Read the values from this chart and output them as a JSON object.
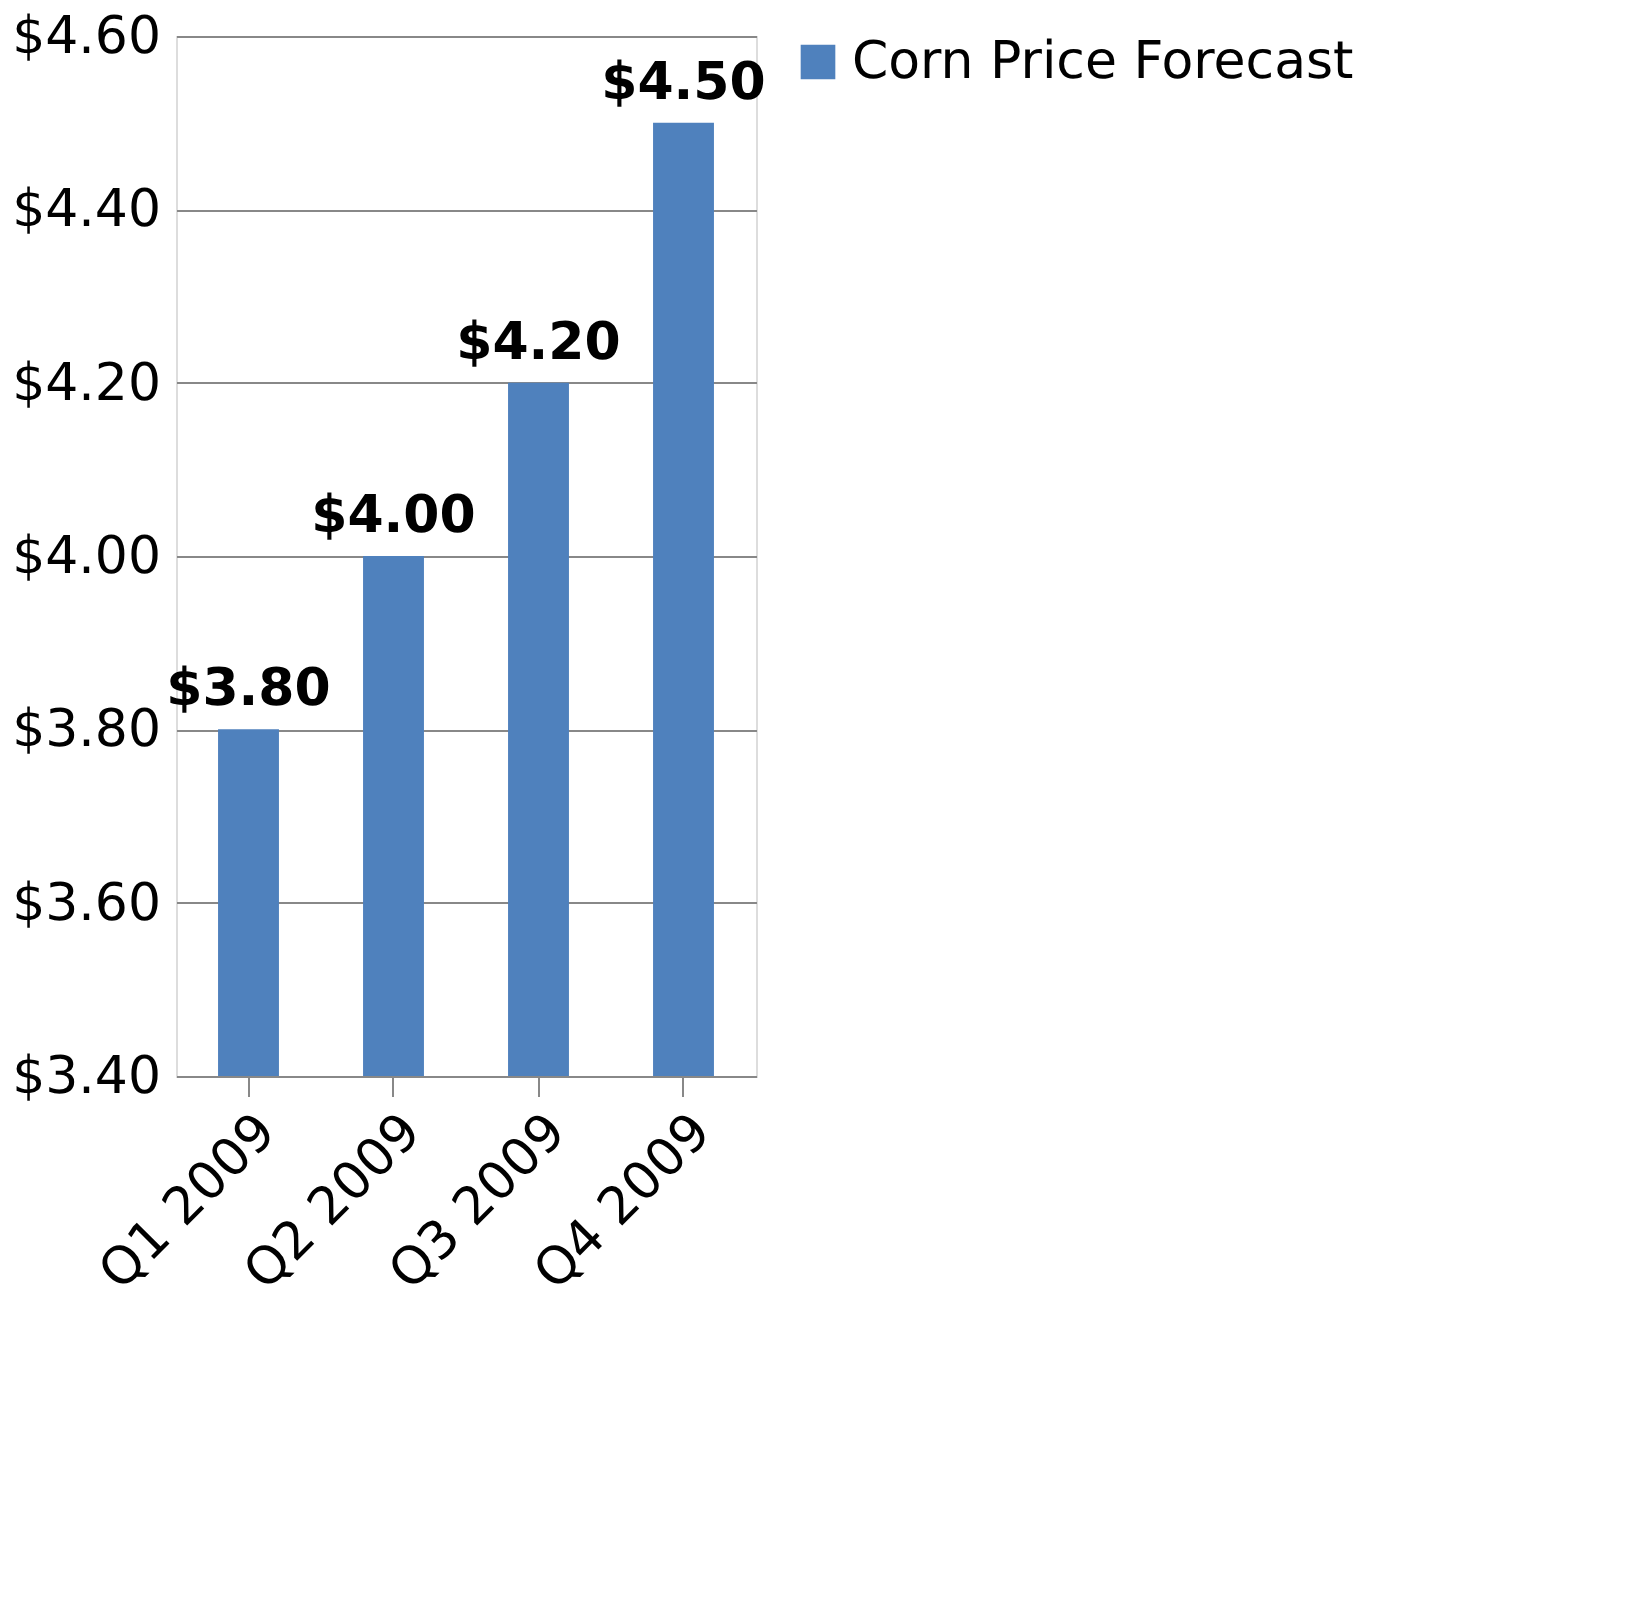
{
  "chart_data": {
    "type": "bar",
    "categories": [
      "Q1 2009",
      "Q2 2009",
      "Q3 2009",
      "Q4 2009"
    ],
    "series": [
      {
        "name": "Corn Price Forecast",
        "color": "#4f81bd",
        "values": [
          3.8,
          4.0,
          4.2,
          4.5
        ]
      }
    ],
    "value_labels": [
      "$3.80",
      "$4.00",
      "$4.20",
      "$4.50"
    ],
    "ylim": [
      3.4,
      4.6
    ],
    "yticks": [
      {
        "value": 3.4,
        "label": "$3.40"
      },
      {
        "value": 3.6,
        "label": "$3.60"
      },
      {
        "value": 3.8,
        "label": "$3.80"
      },
      {
        "value": 4.0,
        "label": "$4.00"
      },
      {
        "value": 4.2,
        "label": "$4.20"
      },
      {
        "value": 4.4,
        "label": "$4.40"
      },
      {
        "value": 4.6,
        "label": "$4.60"
      }
    ],
    "grid": "y",
    "legend": "right"
  }
}
